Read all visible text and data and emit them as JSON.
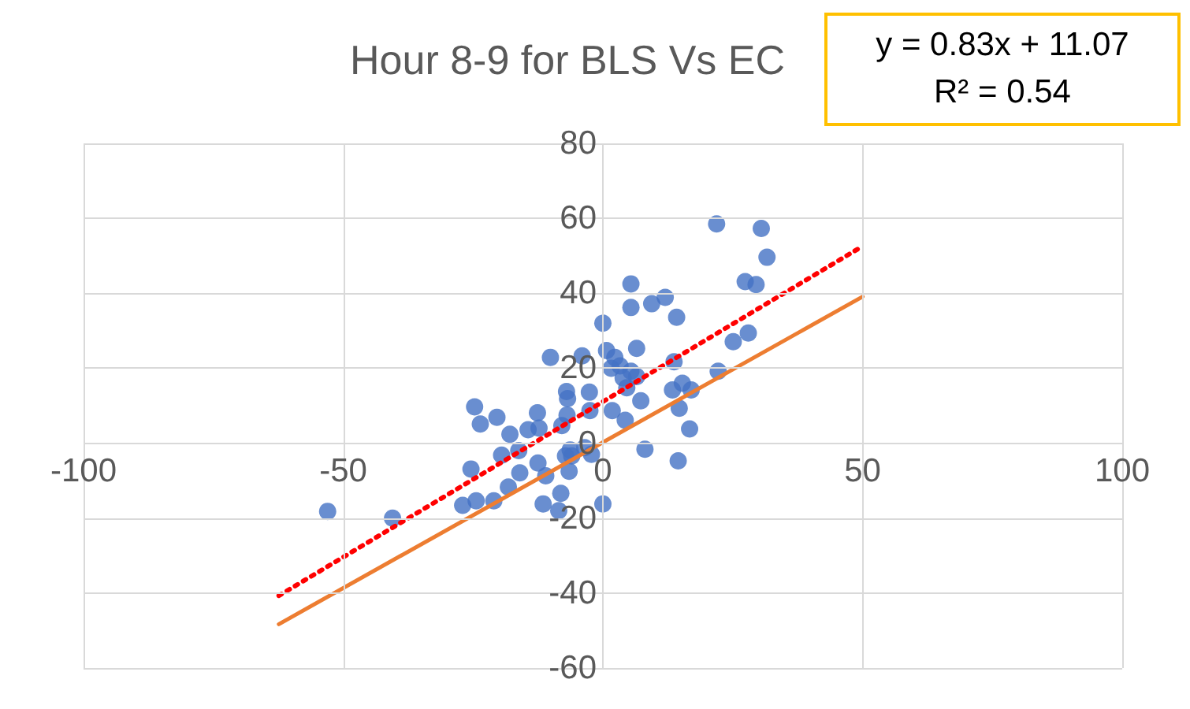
{
  "chart_data": {
    "type": "scatter",
    "title": "Hour 8-9 for BLS Vs EC",
    "annotations": [
      "y = 0.83x + 11.07",
      "R² = 0.54"
    ],
    "series": [
      {
        "color": "#4472c4",
        "marker": "circle",
        "x": [
          -53,
          -40.5,
          -27,
          -24.4,
          -21,
          -25.4,
          -24.7,
          -23.6,
          -20.4,
          -17.9,
          -19.5,
          -18.2,
          -16.2,
          -16,
          -14.4,
          -12.6,
          -12.3,
          -12.5,
          -11.5,
          -11,
          -10.1,
          -8.5,
          -8.1,
          -7.9,
          -7,
          -6.8,
          -6.9,
          -6.3,
          -6.5,
          -6,
          -7.2,
          -4,
          -3.5,
          -2.6,
          -2.5,
          -2.2,
          0,
          0,
          0.7,
          1.8,
          1.6,
          2.3,
          3.3,
          3.9,
          4.3,
          4.6,
          5.4,
          5.4,
          5.4,
          6.5,
          6.5,
          7.3,
          8.1,
          9.4,
          12,
          14.2,
          13.7,
          13.4,
          14.7,
          15.3,
          14.5,
          16.7,
          17,
          22.2,
          21.9,
          25.1,
          28,
          27.4,
          29.5,
          30.5,
          31.6
        ],
        "values": [
          -18.2,
          -20,
          -16.6,
          -15.4,
          -15.4,
          -6.9,
          9.7,
          5.1,
          6.9,
          2.4,
          -3.2,
          -11.7,
          -2,
          -7.9,
          3.6,
          8.1,
          4,
          -5.3,
          -16.2,
          -8.7,
          22.9,
          -18,
          -13.4,
          4.7,
          13.8,
          11.9,
          7.5,
          -1.8,
          -7.5,
          -3.4,
          -3.4,
          23.3,
          -1.2,
          13.6,
          8.7,
          -3,
          32,
          -16.2,
          24.7,
          8.7,
          20,
          22.9,
          20.6,
          17.4,
          6.1,
          14.8,
          42.5,
          36.2,
          19.2,
          25.3,
          17.8,
          11.3,
          -1.6,
          37.2,
          38.9,
          33.6,
          21.7,
          14.2,
          9.3,
          16,
          -4.7,
          3.8,
          14.2,
          19.2,
          58.5,
          27.1,
          29.4,
          43.1,
          42.3,
          57.3,
          49.6
        ]
      },
      {
        "type": "line",
        "color": "#ed7d31",
        "line_style": "solid",
        "marker": "none",
        "x": [
          -62.4,
          50
        ],
        "values": [
          -48.3,
          39.1
        ]
      },
      {
        "type": "line",
        "color": "#ff0000",
        "line_style": "dotted",
        "marker": "none",
        "x": [
          -62.4,
          49.8
        ],
        "values": [
          -40.7,
          52.4
        ]
      }
    ],
    "xlim": [
      -100,
      100
    ],
    "xticks": [
      -100,
      -50,
      0,
      50,
      100
    ],
    "ylim": [
      -60,
      80
    ],
    "yticks": [
      -60,
      -40,
      -20,
      0,
      20,
      40,
      60,
      80
    ],
    "grid": true
  }
}
